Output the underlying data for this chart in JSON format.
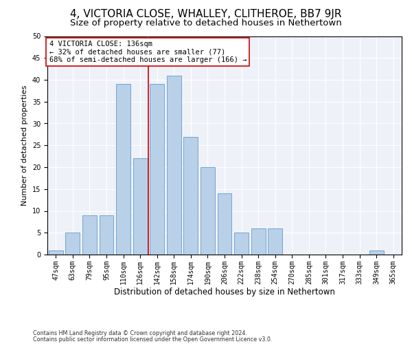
{
  "title": "4, VICTORIA CLOSE, WHALLEY, CLITHEROE, BB7 9JR",
  "subtitle": "Size of property relative to detached houses in Nethertown",
  "xlabel": "Distribution of detached houses by size in Nethertown",
  "ylabel": "Number of detached properties",
  "categories": [
    "47sqm",
    "63sqm",
    "79sqm",
    "95sqm",
    "110sqm",
    "126sqm",
    "142sqm",
    "158sqm",
    "174sqm",
    "190sqm",
    "206sqm",
    "222sqm",
    "238sqm",
    "254sqm",
    "270sqm",
    "285sqm",
    "301sqm",
    "317sqm",
    "333sqm",
    "349sqm",
    "365sqm"
  ],
  "values": [
    1,
    5,
    9,
    9,
    39,
    22,
    39,
    41,
    27,
    20,
    14,
    5,
    6,
    6,
    0,
    0,
    0,
    0,
    0,
    1,
    0
  ],
  "bar_color": "#b8d0e8",
  "bar_edge_color": "#6699cc",
  "vline_x": 5.5,
  "vline_color": "#cc0000",
  "annotation_title": "4 VICTORIA CLOSE: 136sqm",
  "annotation_line2": "← 32% of detached houses are smaller (77)",
  "annotation_line3": "68% of semi-detached houses are larger (166) →",
  "annotation_box_color": "#ffffff",
  "annotation_box_edge": "#cc0000",
  "ylim": [
    0,
    50
  ],
  "yticks": [
    0,
    5,
    10,
    15,
    20,
    25,
    30,
    35,
    40,
    45,
    50
  ],
  "background_color": "#eef2f8",
  "footer1": "Contains HM Land Registry data © Crown copyright and database right 2024.",
  "footer2": "Contains public sector information licensed under the Open Government Licence v3.0.",
  "title_fontsize": 11,
  "subtitle_fontsize": 9.5,
  "xlabel_fontsize": 8.5,
  "ylabel_fontsize": 8,
  "tick_fontsize": 7,
  "annotation_fontsize": 7.5,
  "footer_fontsize": 5.8
}
